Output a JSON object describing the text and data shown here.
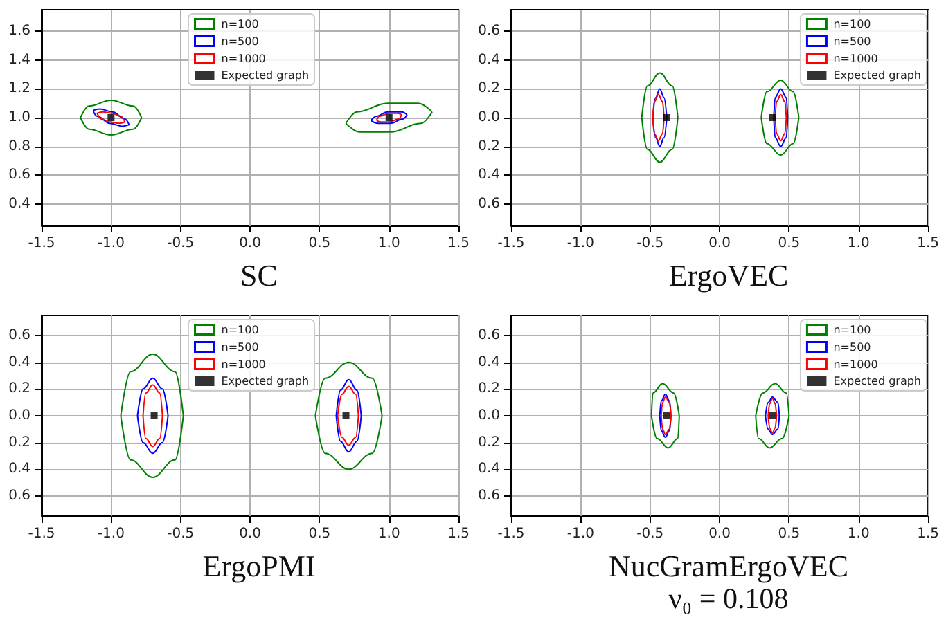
{
  "chart_data": [
    {
      "type": "line",
      "title": "SC",
      "xlim": [
        -1.5,
        1.5
      ],
      "xticks": [
        -1.5,
        {
          "value": -1,
          "label": "-1.0"
        },
        -0.5,
        {
          "value": 0,
          "label": "0.0"
        },
        0.5,
        {
          "value": 1,
          "label": "1.0"
        },
        1.5
      ],
      "ylim": [
        0.25,
        1.75
      ],
      "yticks": [
        0.4,
        0.6,
        0.8,
        {
          "value": 1,
          "label": "1.0"
        },
        1.2,
        1.4,
        1.6
      ],
      "grid": true,
      "legend": "top",
      "series": [
        {
          "name": "n=100",
          "marker": "none",
          "color": "#008000",
          "x": [
            -1.22,
            -1.16,
            -1.0,
            -0.84,
            -0.78,
            null,
            -1.22,
            -1.16,
            -1.0,
            -0.84,
            -0.78,
            null,
            0.69,
            0.77,
            0.99,
            1.21,
            1.31,
            null,
            0.69,
            0.79,
            1.01,
            1.23,
            1.31
          ],
          "values": [
            1.0,
            1.08,
            1.12,
            1.08,
            1.0,
            null,
            1.0,
            0.92,
            0.88,
            0.92,
            1.0,
            null,
            0.96,
            1.04,
            1.1,
            1.1,
            1.04,
            null,
            0.96,
            0.9,
            0.9,
            0.96,
            1.04
          ]
        },
        {
          "name": "n=500",
          "marker": "none",
          "color": "#0000ff",
          "x": [
            -1.13,
            -1.08,
            -0.99,
            -0.9,
            -0.87,
            null,
            -1.13,
            -1.1,
            -1.01,
            -0.92,
            -0.87,
            null,
            0.87,
            0.91,
            0.99,
            1.09,
            1.13,
            null,
            0.87,
            0.92,
            1.01,
            1.1,
            1.13
          ],
          "values": [
            1.05,
            1.06,
            1.04,
            0.99,
            0.95,
            null,
            1.05,
            1.01,
            0.96,
            0.94,
            0.95,
            null,
            0.98,
            1.01,
            1.04,
            1.04,
            1.02,
            null,
            0.98,
            0.96,
            0.96,
            0.99,
            1.02
          ]
        },
        {
          "name": "n=1000",
          "marker": "none",
          "color": "#ff0000",
          "x": [
            -1.1,
            -1.06,
            -0.99,
            -0.93,
            -0.9,
            null,
            -1.1,
            -1.07,
            -1.01,
            -0.94,
            -0.9,
            null,
            0.91,
            0.93,
            1.0,
            1.06,
            1.09,
            null,
            0.91,
            0.94,
            1.0,
            1.07,
            1.09
          ],
          "values": [
            1.03,
            1.04,
            1.03,
            1.01,
            0.97,
            null,
            1.03,
            0.99,
            0.97,
            0.96,
            0.97,
            null,
            0.98,
            1.01,
            1.03,
            1.03,
            1.02,
            null,
            0.98,
            0.97,
            0.97,
            0.99,
            1.02
          ]
        },
        {
          "name": "Expected graph",
          "type": "scatter",
          "marker": "square",
          "color": "#000000",
          "x": [
            -1,
            1
          ],
          "values": [
            1,
            1
          ]
        }
      ]
    },
    {
      "type": "line",
      "title": "ErgoVEC",
      "xlim": [
        -1.5,
        1.5
      ],
      "xticks": [
        -1.5,
        {
          "value": -1,
          "label": "-1.0"
        },
        -0.5,
        {
          "value": 0,
          "label": "0.0"
        },
        0.5,
        {
          "value": 1,
          "label": "1.0"
        },
        1.5
      ],
      "ylim": [
        -0.75,
        0.75
      ],
      "yticks": [
        {
          "value": -0.6,
          "label": "0.6"
        },
        {
          "value": -0.4,
          "label": "0.4"
        },
        {
          "value": -0.2,
          "label": "0.2"
        },
        {
          "value": 0,
          "label": "0.0"
        },
        0.2,
        0.4,
        0.6
      ],
      "grid": true,
      "legend": "top right",
      "series": [
        {
          "name": "n=100",
          "marker": "none",
          "color": "#008000",
          "x": [
            -0.56,
            -0.52,
            -0.43,
            -0.34,
            -0.3,
            null,
            -0.56,
            -0.52,
            -0.43,
            -0.34,
            -0.3,
            null,
            0.3,
            0.34,
            0.44,
            0.53,
            0.57,
            null,
            0.3,
            0.34,
            0.44,
            0.53,
            0.57
          ],
          "values": [
            0,
            0.22,
            0.31,
            0.22,
            0,
            null,
            0,
            -0.22,
            -0.31,
            -0.22,
            0,
            null,
            0,
            0.18,
            0.26,
            0.18,
            0,
            null,
            0,
            -0.18,
            -0.26,
            -0.18,
            0
          ]
        },
        {
          "name": "n=500",
          "marker": "none",
          "color": "#0000ff",
          "x": [
            -0.48,
            -0.46,
            -0.43,
            -0.4,
            -0.38,
            null,
            -0.48,
            -0.46,
            -0.43,
            -0.4,
            -0.38,
            null,
            0.39,
            0.4,
            0.44,
            0.48,
            0.49,
            null,
            0.39,
            0.4,
            0.44,
            0.48,
            0.49
          ],
          "values": [
            0,
            0.14,
            0.2,
            0.14,
            0,
            null,
            0,
            -0.14,
            -0.2,
            -0.14,
            0,
            null,
            0,
            0.14,
            0.2,
            0.14,
            0,
            null,
            0,
            -0.14,
            -0.2,
            -0.14,
            0
          ]
        },
        {
          "name": "n=1000",
          "marker": "none",
          "color": "#ff0000",
          "x": [
            -0.48,
            -0.47,
            -0.44,
            -0.41,
            -0.4,
            null,
            -0.48,
            -0.47,
            -0.44,
            -0.41,
            -0.4,
            null,
            0.4,
            0.41,
            0.44,
            0.47,
            0.48,
            null,
            0.4,
            0.41,
            0.44,
            0.47,
            0.48
          ],
          "values": [
            0,
            0.11,
            0.16,
            0.11,
            0,
            null,
            0,
            -0.11,
            -0.16,
            -0.11,
            0,
            null,
            0,
            0.11,
            0.16,
            0.11,
            0,
            null,
            0,
            -0.11,
            -0.16,
            -0.11,
            0
          ]
        },
        {
          "name": "Expected graph",
          "type": "scatter",
          "marker": "square",
          "color": "#000000",
          "x": [
            -0.38,
            0.38
          ],
          "values": [
            0,
            0
          ]
        }
      ]
    },
    {
      "type": "line",
      "title": "ErgoPMI",
      "xlim": [
        -1.5,
        1.5
      ],
      "xticks": [
        -1.5,
        {
          "value": -1,
          "label": "-1.0"
        },
        -0.5,
        {
          "value": 0,
          "label": "0.0"
        },
        0.5,
        {
          "value": 1,
          "label": "1.0"
        },
        1.5
      ],
      "ylim": [
        -0.75,
        0.75
      ],
      "yticks": [
        {
          "value": -0.6,
          "label": "0.6"
        },
        {
          "value": -0.4,
          "label": "0.4"
        },
        {
          "value": -0.2,
          "label": "0.2"
        },
        {
          "value": 0,
          "label": "0.0"
        },
        0.2,
        0.4,
        0.6
      ],
      "grid": true,
      "legend": "top",
      "series": [
        {
          "name": "n=100",
          "marker": "none",
          "color": "#008000",
          "x": [
            -0.93,
            -0.86,
            -0.7,
            -0.54,
            -0.48,
            null,
            -0.93,
            -0.86,
            -0.7,
            -0.54,
            -0.48,
            null,
            0.47,
            0.54,
            0.71,
            0.88,
            0.95,
            null,
            0.47,
            0.54,
            0.71,
            0.88,
            0.95
          ],
          "values": [
            0,
            0.33,
            0.46,
            0.33,
            0,
            null,
            0,
            -0.33,
            -0.46,
            -0.33,
            0,
            null,
            0,
            0.28,
            0.4,
            0.28,
            0,
            null,
            0,
            -0.28,
            -0.4,
            -0.28,
            0
          ]
        },
        {
          "name": "n=500",
          "marker": "none",
          "color": "#0000ff",
          "x": [
            -0.81,
            -0.77,
            -0.7,
            -0.63,
            -0.59,
            null,
            -0.81,
            -0.77,
            -0.7,
            -0.63,
            -0.59,
            null,
            0.62,
            0.65,
            0.71,
            0.77,
            0.8,
            null,
            0.62,
            0.65,
            0.71,
            0.77,
            0.8
          ],
          "values": [
            0,
            0.2,
            0.28,
            0.2,
            0,
            null,
            0,
            -0.2,
            -0.28,
            -0.2,
            0,
            null,
            0,
            0.19,
            0.27,
            0.19,
            0,
            null,
            0,
            -0.19,
            -0.27,
            -0.19,
            0
          ]
        },
        {
          "name": "n=1000",
          "marker": "none",
          "color": "#ff0000",
          "x": [
            -0.77,
            -0.75,
            -0.7,
            -0.65,
            -0.63,
            null,
            -0.77,
            -0.75,
            -0.7,
            -0.65,
            -0.63,
            null,
            0.63,
            0.66,
            0.71,
            0.76,
            0.78,
            null,
            0.63,
            0.66,
            0.71,
            0.76,
            0.78
          ],
          "values": [
            0,
            0.17,
            0.23,
            0.17,
            0,
            null,
            0,
            -0.17,
            -0.23,
            -0.17,
            0,
            null,
            0,
            0.16,
            0.22,
            0.16,
            0,
            null,
            0,
            -0.16,
            -0.22,
            -0.16,
            0
          ]
        },
        {
          "name": "Expected graph",
          "type": "scatter",
          "marker": "square",
          "color": "#000000",
          "x": [
            -0.69,
            0.69
          ],
          "values": [
            0,
            0
          ]
        }
      ]
    },
    {
      "type": "line",
      "title": "NucGramErgoVEC",
      "subtitle": "ν₀ = 0.108",
      "xlim": [
        -1.5,
        1.5
      ],
      "xticks": [
        -1.5,
        {
          "value": -1,
          "label": "-1.0"
        },
        -0.5,
        {
          "value": 0,
          "label": "0.0"
        },
        0.5,
        {
          "value": 1,
          "label": "1.0"
        },
        1.5
      ],
      "ylim": [
        -0.75,
        0.75
      ],
      "yticks": [
        {
          "value": -0.6,
          "label": "0.6"
        },
        {
          "value": -0.4,
          "label": "0.4"
        },
        {
          "value": -0.2,
          "label": "0.2"
        },
        {
          "value": 0,
          "label": "0.0"
        },
        0.2,
        0.4,
        0.6
      ],
      "grid": true,
      "legend": "top right",
      "series": [
        {
          "name": "n=100",
          "marker": "none",
          "color": "#008000",
          "x": [
            -0.49,
            -0.48,
            -0.41,
            -0.33,
            -0.29,
            null,
            -0.49,
            -0.45,
            -0.37,
            -0.3,
            -0.29,
            null,
            0.26,
            0.31,
            0.4,
            0.48,
            0.5,
            null,
            0.26,
            0.28,
            0.36,
            0.45,
            0.5
          ],
          "values": [
            0,
            0.17,
            0.24,
            0.17,
            0,
            null,
            0,
            -0.17,
            -0.24,
            -0.17,
            0,
            null,
            0,
            0.17,
            0.24,
            0.17,
            0,
            null,
            0,
            -0.17,
            -0.24,
            -0.17,
            0
          ]
        },
        {
          "name": "n=500",
          "marker": "none",
          "color": "#0000ff",
          "x": [
            -0.43,
            -0.42,
            -0.39,
            -0.36,
            -0.35,
            null,
            -0.43,
            -0.42,
            -0.39,
            -0.36,
            -0.35,
            null,
            0.33,
            0.35,
            0.38,
            0.42,
            0.43,
            null,
            0.33,
            0.35,
            0.38,
            0.42,
            0.43
          ],
          "values": [
            0,
            0.11,
            0.16,
            0.11,
            0,
            null,
            0,
            -0.11,
            -0.16,
            -0.11,
            0,
            null,
            0,
            0.1,
            0.14,
            0.1,
            0,
            null,
            0,
            -0.1,
            -0.14,
            -0.1,
            0
          ]
        },
        {
          "name": "n=1000",
          "marker": "none",
          "color": "#ff0000",
          "x": [
            -0.42,
            -0.41,
            -0.39,
            -0.36,
            -0.35,
            null,
            -0.42,
            -0.41,
            -0.39,
            -0.36,
            -0.35,
            null,
            0.35,
            0.36,
            0.38,
            0.4,
            0.41,
            null,
            0.35,
            0.36,
            0.38,
            0.4,
            0.41
          ],
          "values": [
            0,
            0.1,
            0.14,
            0.1,
            0,
            null,
            0,
            -0.1,
            -0.14,
            -0.1,
            0,
            null,
            0,
            0.09,
            0.13,
            0.09,
            0,
            null,
            0,
            -0.09,
            -0.13,
            -0.09,
            0
          ]
        },
        {
          "name": "Expected graph",
          "type": "scatter",
          "marker": "square",
          "color": "#000000",
          "x": [
            -0.38,
            0.38
          ],
          "values": [
            0,
            0
          ]
        }
      ]
    }
  ]
}
